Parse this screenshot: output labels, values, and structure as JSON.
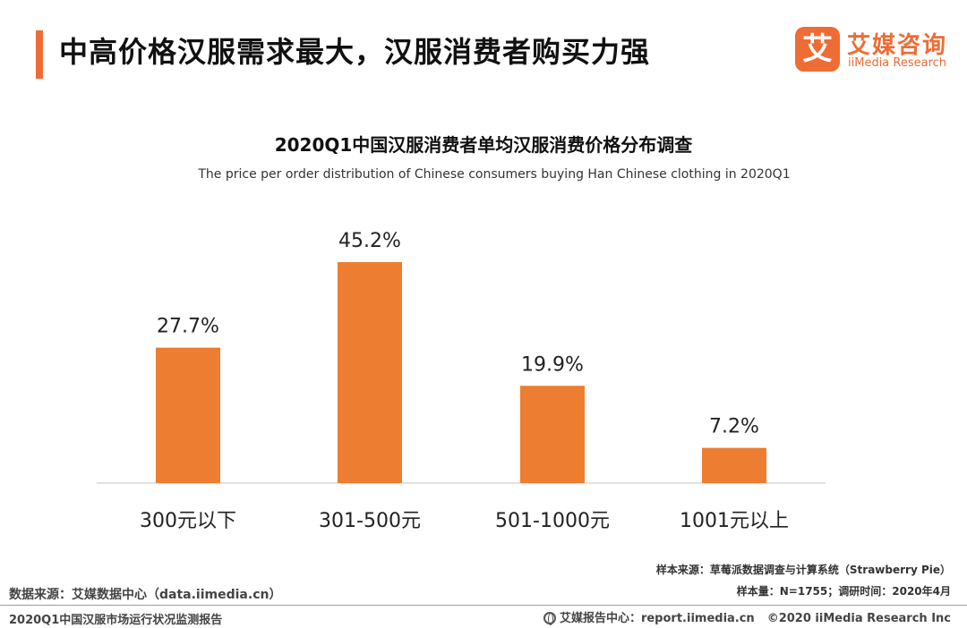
{
  "page": {
    "title": "中高价格汉服需求最大，汉服消费者购买力强"
  },
  "logo": {
    "mark": "艾",
    "name_cn": "艾媒咨询",
    "name_en": "iiMedia Research"
  },
  "chart_data": {
    "type": "bar",
    "title": "2020Q1中国汉服消费者单均汉服消费价格分布调查",
    "subtitle": "The price per order distribution of Chinese consumers buying Han Chinese clothing in 2020Q1",
    "categories": [
      "300元以下",
      "301-500元",
      "501-1000元",
      "1001元以上"
    ],
    "values": [
      27.7,
      45.2,
      19.9,
      7.2
    ],
    "value_labels": [
      "27.7%",
      "45.2%",
      "19.9%",
      "7.2%"
    ],
    "unit": "%",
    "ylim": [
      0,
      45.2
    ],
    "grid": false,
    "bar_color": "#ed7d31",
    "axis_color": "#d9d9d9"
  },
  "notes": {
    "sample_source": "样本来源：草莓派数据调查与计算系统（Strawberry Pie）",
    "sample_size": "样本量：N=1755；调研时间：2020年4月",
    "data_source": "数据来源：艾媒数据中心（data.iimedia.cn）"
  },
  "footer": {
    "report_name": "2020Q1中国汉服市场运行状况监测报告",
    "report_center": "艾媒报告中心：report.iimedia.cn",
    "copyright": "©2020  iiMedia Research  Inc"
  },
  "colors": {
    "accent": "#ee6c35"
  }
}
